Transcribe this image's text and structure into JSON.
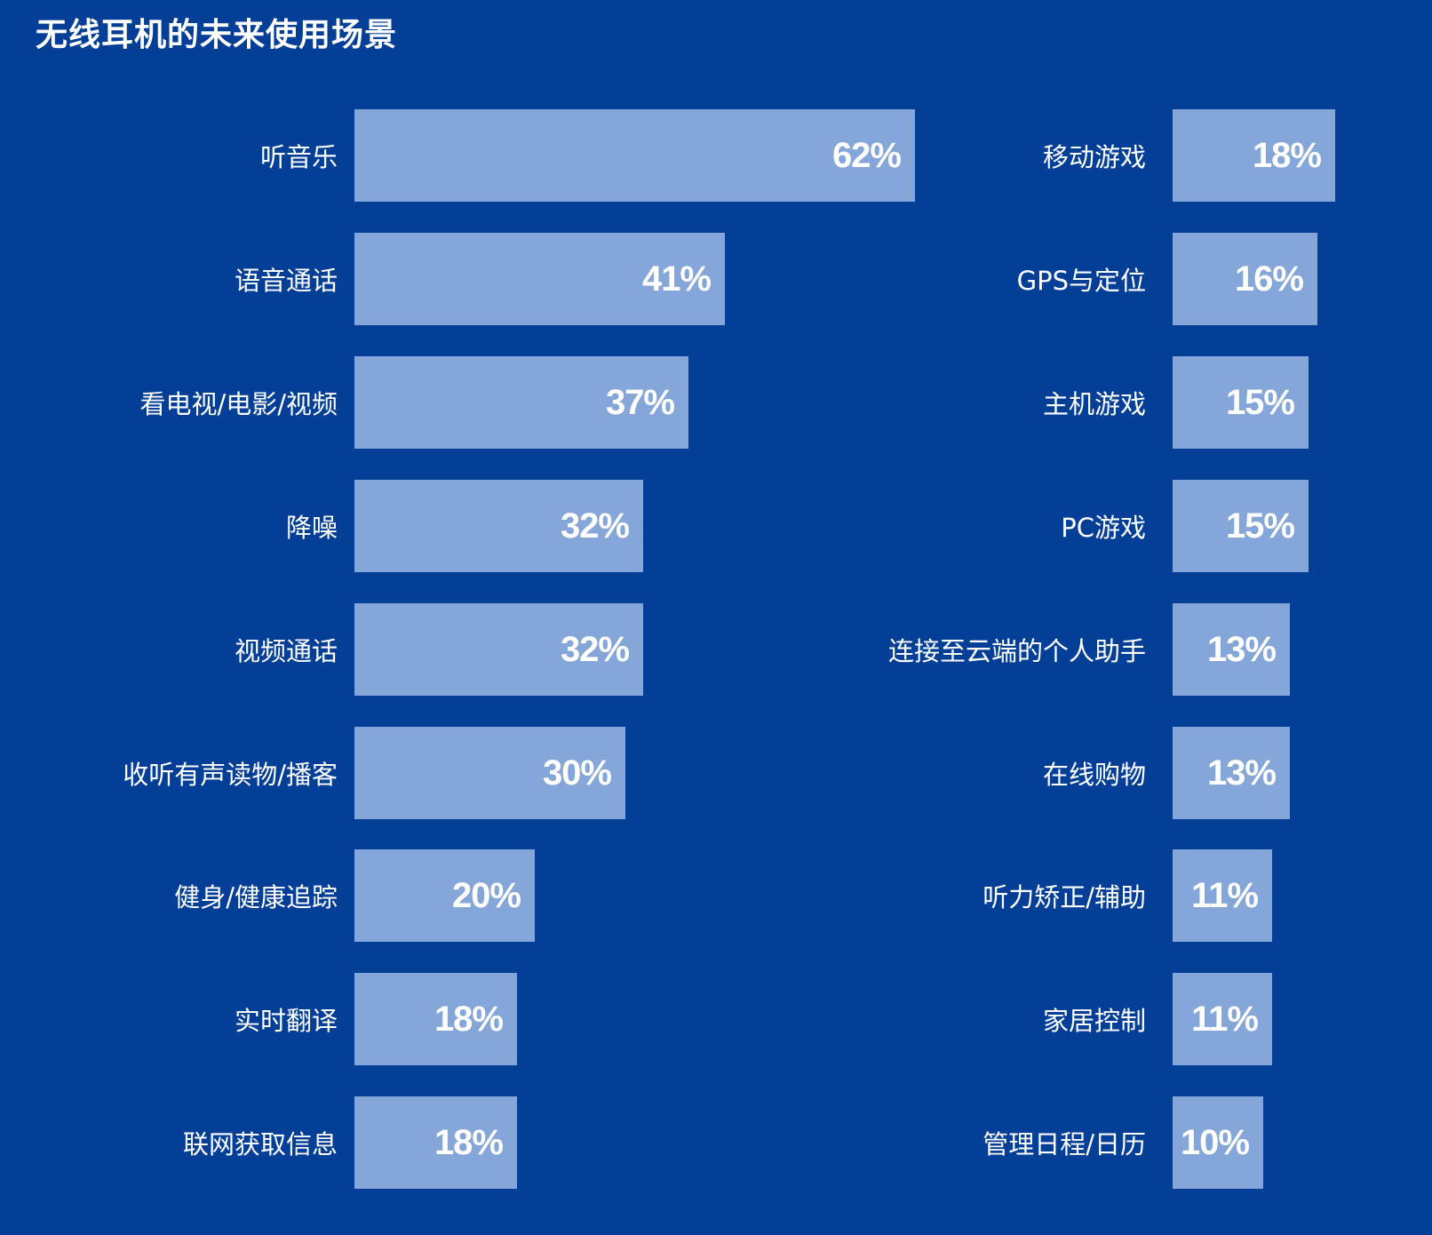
{
  "title": "无线耳机的未来使用场景",
  "colors": {
    "background": "#043F97",
    "bar": "#85A6D8",
    "text": "#FFFFFF"
  },
  "left": [
    {
      "label": "听音乐",
      "value": "62%"
    },
    {
      "label": "语音通话",
      "value": "41%"
    },
    {
      "label": "看电视/电影/视频",
      "value": "37%"
    },
    {
      "label": "降噪",
      "value": "32%"
    },
    {
      "label": "视频通话",
      "value": "32%"
    },
    {
      "label": "收听有声读物/播客",
      "value": "30%"
    },
    {
      "label": "健身/健康追踪",
      "value": "20%"
    },
    {
      "label": "实时翻译",
      "value": "18%"
    },
    {
      "label": "联网获取信息",
      "value": "18%"
    }
  ],
  "right": [
    {
      "label": "移动游戏",
      "value": "18%"
    },
    {
      "label": "GPS与定位",
      "value": "16%"
    },
    {
      "label": "主机游戏",
      "value": "15%"
    },
    {
      "label": "PC游戏",
      "value": "15%"
    },
    {
      "label": "连接至云端的个人助手",
      "value": "13%"
    },
    {
      "label": "在线购物",
      "value": "13%"
    },
    {
      "label": "听力矫正/辅助",
      "value": "11%"
    },
    {
      "label": "家居控制",
      "value": "11%"
    },
    {
      "label": "管理日程/日历",
      "value": "10%"
    }
  ],
  "chart_data": {
    "type": "bar",
    "orientation": "horizontal",
    "title": "无线耳机的未来使用场景",
    "xlabel": "",
    "ylabel": "",
    "grid": false,
    "legend": null,
    "unit": "%",
    "categories": [
      "听音乐",
      "语音通话",
      "看电视/电影/视频",
      "降噪",
      "视频通话",
      "收听有声读物/播客",
      "健身/健康追踪",
      "实时翻译",
      "联网获取信息",
      "移动游戏",
      "GPS与定位",
      "主机游戏",
      "PC游戏",
      "连接至云端的个人助手",
      "在线购物",
      "听力矫正/辅助",
      "家居控制",
      "管理日程/日历"
    ],
    "values": [
      62,
      41,
      37,
      32,
      32,
      30,
      20,
      18,
      18,
      18,
      16,
      15,
      15,
      13,
      13,
      11,
      11,
      10
    ],
    "layout": "two columns of 9 bars each, value labels inside bar ends"
  }
}
